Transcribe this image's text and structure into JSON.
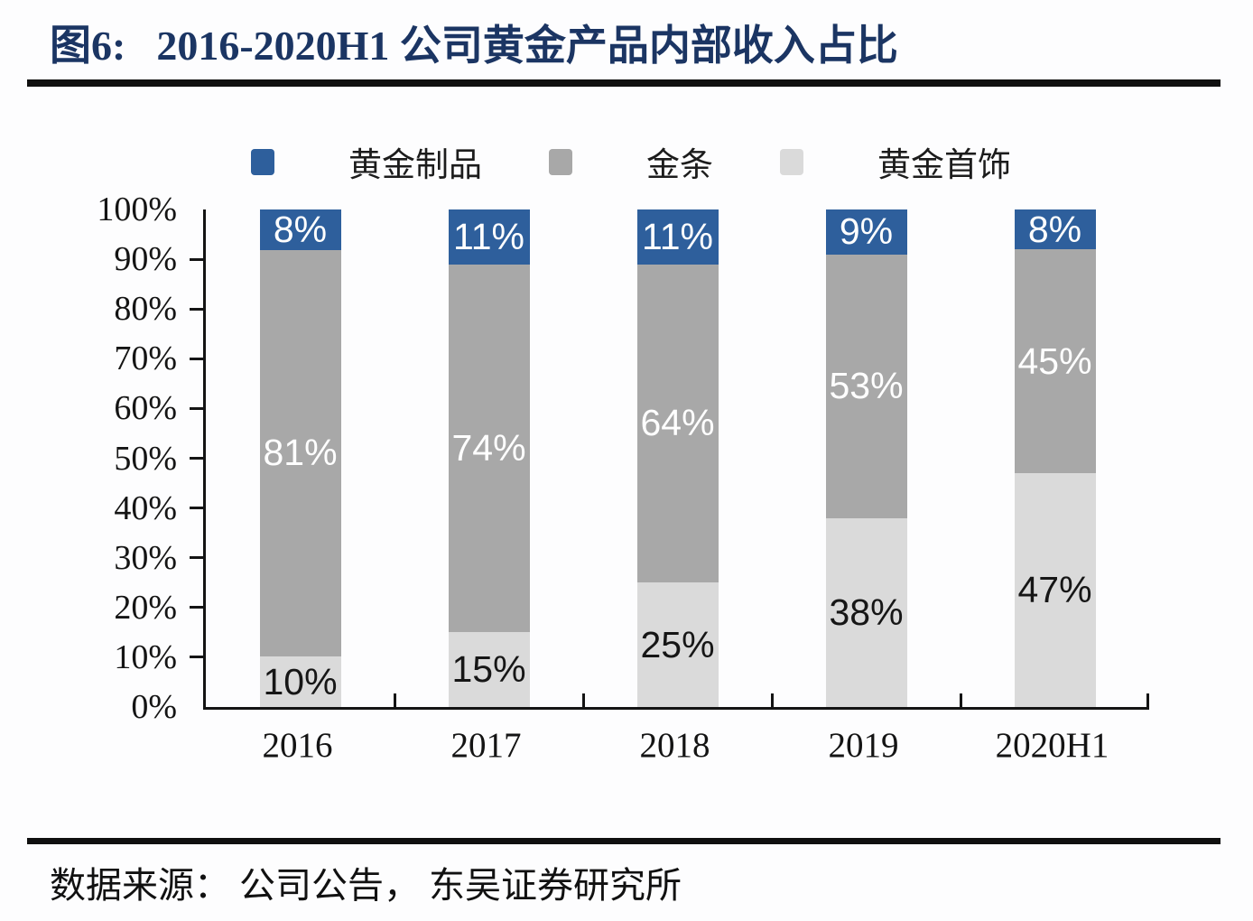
{
  "figure": {
    "label": "图6:",
    "title": "2016-2020H1 公司黄金产品内部收入占比"
  },
  "source_line": "数据来源：  公司公告，  东吴证券研究所",
  "colors": {
    "title_text": "#1b3563",
    "rule": "#101010",
    "axis": "#141414",
    "blue": "#2e5f9c",
    "gray": "#a8a8a8",
    "light_gray": "#dadada"
  },
  "chart_data": {
    "type": "bar",
    "stacked": true,
    "title": "2016-2020H1 公司黄金产品内部收入占比",
    "categories": [
      "2016",
      "2017",
      "2018",
      "2019",
      "2020H1"
    ],
    "series": [
      {
        "name": "黄金制品",
        "color": "#2e5f9c",
        "label_color": "#ffffff",
        "values": [
          8,
          11,
          11,
          9,
          8
        ]
      },
      {
        "name": "金条",
        "color": "#a8a8a8",
        "label_color": "#ffffff",
        "values": [
          81,
          74,
          64,
          53,
          45
        ]
      },
      {
        "name": "黄金首饰",
        "color": "#dadada",
        "label_color": "#161616",
        "values": [
          10,
          15,
          25,
          38,
          47
        ]
      }
    ],
    "value_suffix": "%",
    "y_ticks": [
      "100%",
      "90%",
      "80%",
      "70%",
      "60%",
      "50%",
      "40%",
      "30%",
      "20%",
      "10%",
      "0%"
    ],
    "ylim": [
      0,
      100
    ],
    "grid": false,
    "legend_position": "top",
    "xlabel": "",
    "ylabel": ""
  }
}
